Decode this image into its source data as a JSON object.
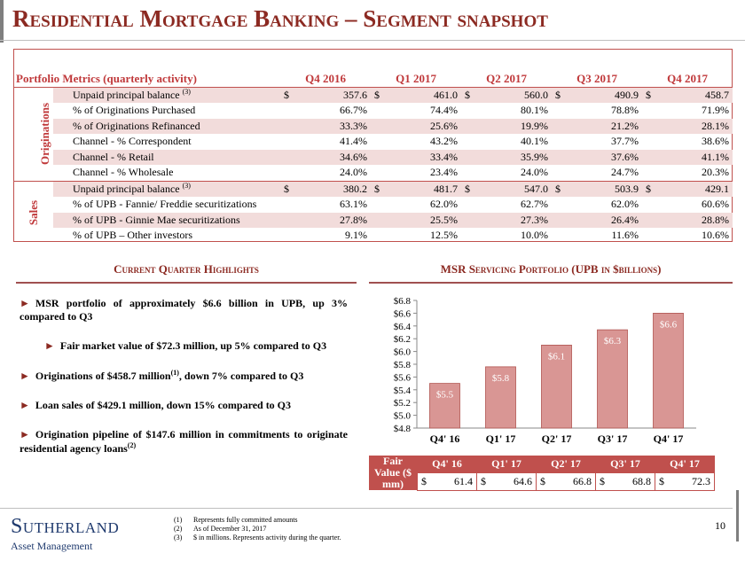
{
  "header": {
    "title": "Residential Mortgage Banking – Segment snapshot"
  },
  "metrics_table": {
    "header": [
      "Portfolio Metrics (quarterly activity)",
      "Q4 2016",
      "Q1 2017",
      "Q2 2017",
      "Q3 2017",
      "Q4 2017"
    ],
    "groups": [
      {
        "label": "Originations",
        "rows": [
          {
            "label": "Unpaid principal balance",
            "note": "(3)",
            "prefix": "$",
            "cells": [
              "357.6",
              "461.0",
              "560.0",
              "490.9",
              "458.7"
            ]
          },
          {
            "label": "% of Originations Purchased",
            "cells": [
              "66.7%",
              "74.4%",
              "80.1%",
              "78.8%",
              "71.9%"
            ]
          },
          {
            "label": "% of Originations Refinanced",
            "cells": [
              "33.3%",
              "25.6%",
              "19.9%",
              "21.2%",
              "28.1%"
            ]
          },
          {
            "label": "Channel - % Correspondent",
            "cells": [
              "41.4%",
              "43.2%",
              "40.1%",
              "37.7%",
              "38.6%"
            ]
          },
          {
            "label": "Channel - % Retail",
            "cells": [
              "34.6%",
              "33.4%",
              "35.9%",
              "37.6%",
              "41.1%"
            ]
          },
          {
            "label": "Channel - % Wholesale",
            "cells": [
              "24.0%",
              "23.4%",
              "24.0%",
              "24.7%",
              "20.3%"
            ]
          }
        ]
      },
      {
        "label": "Sales",
        "rows": [
          {
            "label": "Unpaid principal balance",
            "note": "(3)",
            "prefix": "$",
            "cells": [
              "380.2",
              "481.7",
              "547.0",
              "503.9",
              "429.1"
            ]
          },
          {
            "label": "% of UPB - Fannie/ Freddie securitizations",
            "cells": [
              "63.1%",
              "62.0%",
              "62.7%",
              "62.0%",
              "60.6%"
            ]
          },
          {
            "label": "% of UPB - Ginnie Mae securitizations",
            "cells": [
              "27.8%",
              "25.5%",
              "27.3%",
              "26.4%",
              "28.8%"
            ]
          },
          {
            "label": "% of UPB – Other investors",
            "cells": [
              "9.1%",
              "12.5%",
              "10.0%",
              "11.6%",
              "10.6%"
            ]
          }
        ]
      }
    ]
  },
  "highlights": {
    "title": "Current Quarter Highlights",
    "items": [
      {
        "text": "MSR portfolio of approximately $6.6 billion in UPB, up 3% compared to Q3"
      },
      {
        "text": "Fair market value of $72.3 million, up 5% compared to Q3"
      },
      {
        "text": "Originations of $458.7 million",
        "sup": "(1)",
        "after": ", down 7% compared to Q3"
      },
      {
        "text": "Loan sales of $429.1 million, down 15% compared to Q3"
      },
      {
        "text": "Origination pipeline of $147.6 million in commitments to originate residential agency loans",
        "sup": "(2)"
      }
    ]
  },
  "chart_data": {
    "type": "bar",
    "title": "MSR Servicing Portfolio (UPB in $billions)",
    "categories": [
      "Q4' 16",
      "Q1' 17",
      "Q2' 17",
      "Q3' 17",
      "Q4' 17"
    ],
    "values": [
      5.5,
      5.76,
      6.1,
      6.34,
      6.6
    ],
    "value_labels": [
      "$5.5",
      "$5.8",
      "$6.1",
      "$6.3",
      "$6.6"
    ],
    "color": "#d99694",
    "ylim": [
      4.8,
      6.8
    ],
    "yticks": [
      {
        "value": 4.8,
        "label": "$4.8"
      },
      {
        "value": 5.0,
        "label": "$5.0"
      },
      {
        "value": 5.2,
        "label": "$5.2"
      },
      {
        "value": 5.4,
        "label": "$5.4"
      },
      {
        "value": 5.6,
        "label": "$5.6"
      },
      {
        "value": 5.8,
        "label": "$5.8"
      },
      {
        "value": 6.0,
        "label": "$6.0"
      },
      {
        "value": 6.2,
        "label": "$6.2"
      },
      {
        "value": 6.4,
        "label": "$6.4"
      },
      {
        "value": 6.6,
        "label": "$6.6"
      },
      {
        "value": 6.8,
        "label": "$6.8"
      }
    ]
  },
  "fair_value_table": {
    "label": "Fair Value ($ mm)",
    "prefix": "$",
    "columns": [
      "Q4' 16",
      "Q1' 17",
      "Q2' 17",
      "Q3' 17",
      "Q4' 17"
    ],
    "values": [
      "61.4",
      "64.6",
      "66.8",
      "68.8",
      "72.3"
    ]
  },
  "footnotes": [
    {
      "marker": "(1)",
      "text": "Represents fully committed amounts"
    },
    {
      "marker": "(2)",
      "text": "As of December 31, 2017"
    },
    {
      "marker": "(3)",
      "text": "$ in millions. Represents activity during the quarter."
    }
  ],
  "page_number": "10",
  "logo": {
    "name": "Sutherland",
    "tagline": "Asset Management"
  }
}
